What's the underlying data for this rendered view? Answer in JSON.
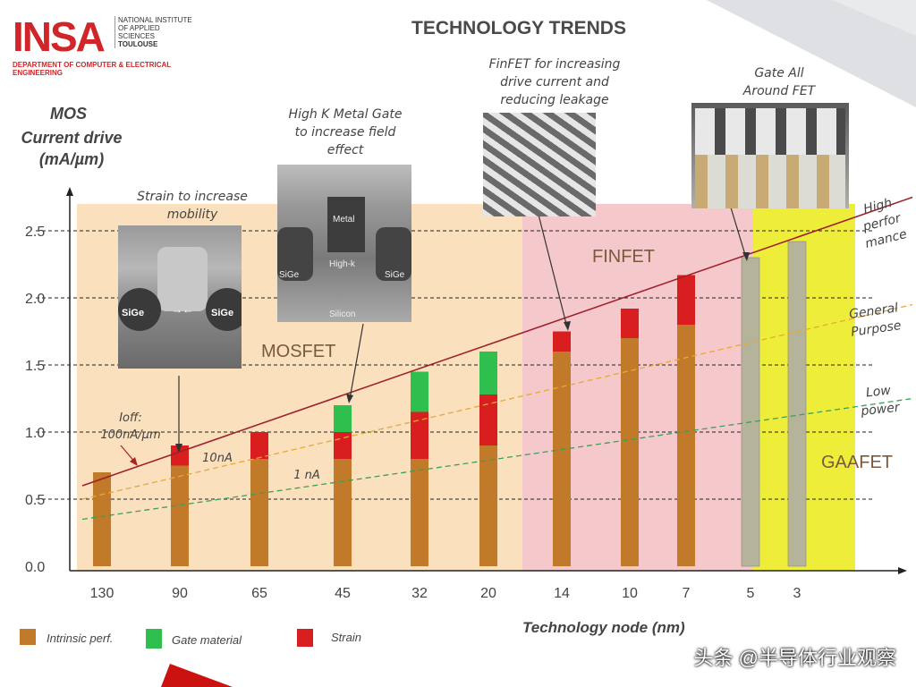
{
  "header": {
    "logo_text": "INSA",
    "institute_lines": [
      "NATIONAL INSTITUTE",
      "OF APPLIED",
      "SCIENCES",
      "TOULOUSE"
    ],
    "department_lines": [
      "DEPARTMENT OF COMPUTER & ELECTRICAL",
      "ENGINEERING"
    ],
    "title": "TECHNOLOGY TRENDS"
  },
  "annotations": {
    "strain": [
      "Strain to increase",
      "mobility"
    ],
    "hkmg": [
      "High K Metal Gate",
      "to increase field",
      "effect"
    ],
    "finfet": [
      "FinFET for increasing",
      "drive current and",
      "reducing leakage"
    ],
    "gaa": [
      "Gate All",
      "Around FET"
    ],
    "ioff": [
      "Ioff:",
      "100nA/µm"
    ],
    "ten_na": "10nA",
    "one_na": "1 nA",
    "high_perf": [
      "High",
      "perfor",
      "mance"
    ],
    "general": [
      "General",
      "Purpose"
    ],
    "low": [
      "Low",
      "power"
    ]
  },
  "regions": {
    "mosfet": "MOSFET",
    "finfet": "FINFET",
    "gaafet": "GAAFET"
  },
  "photo_labels": {
    "strain_sige_left": "SiGe",
    "strain_sige_right": "SiGe",
    "hkmg_metal": "Metal",
    "hkmg_highk": "High-k",
    "hkmg_sige_left": "SiGe",
    "hkmg_sige_right": "SiGe",
    "hkmg_silicon": "Silicon"
  },
  "colors": {
    "intrinsic": "#c07a2a",
    "gate": "#2fbf4f",
    "strain": "#d81e1e",
    "gaa": "#b5b39a",
    "mosfet_bg": "#fae0bd",
    "finfet_bg": "#f5c8cc",
    "gaa_bg": "#eeee3a",
    "high_line": "#a0202a",
    "general_line": "#e8a838",
    "low_line": "#3aa05a"
  },
  "watermark": "头条 @半导体行业观察",
  "chart_data": {
    "type": "bar",
    "title": "TECHNOLOGY TRENDS",
    "ylabel": "MOS Current drive (mA/µm)",
    "ylabel_lines": [
      "MOS",
      "Current drive",
      "(mA/µm)"
    ],
    "xlabel": "Technology node (nm)",
    "ylim": [
      0,
      2.5
    ],
    "yticks": [
      "0.0",
      "0.5",
      "1.0",
      "1.5",
      "2.0",
      "2.5"
    ],
    "ytick_values": [
      0,
      0.5,
      1.0,
      1.5,
      2.0,
      2.5
    ],
    "categories": [
      "130",
      "90",
      "65",
      "45",
      "32",
      "20",
      "14",
      "10",
      "7",
      "5",
      "3"
    ],
    "series": [
      {
        "name": "Intrinsic perf.",
        "values": [
          0.7,
          0.75,
          0.8,
          0.8,
          0.8,
          0.9,
          1.6,
          1.7,
          1.8,
          0,
          0
        ]
      },
      {
        "name": "Strain",
        "values": [
          0,
          0.15,
          0.2,
          0.2,
          0.35,
          0.38,
          0.15,
          0.22,
          0.37,
          0,
          0
        ]
      },
      {
        "name": "Gate material",
        "values": [
          0,
          0,
          0,
          0.2,
          0.3,
          0.32,
          0,
          0,
          0,
          0,
          0
        ]
      },
      {
        "values": [
          0,
          0,
          0,
          0,
          0,
          0,
          0,
          0,
          0,
          2.3,
          2.42
        ]
      }
    ],
    "legend": [
      "Intrinsic perf.",
      "Gate material",
      "Strain"
    ],
    "legend_position": "bottom-left",
    "grid": true,
    "trend_lines": [
      {
        "name": "High performance",
        "x": [
          "130",
          "3"
        ],
        "y": [
          0.6,
          2.75
        ]
      },
      {
        "name": "General Purpose",
        "x": [
          "130",
          "3"
        ],
        "y": [
          0.5,
          1.95
        ]
      },
      {
        "name": "Low power",
        "x": [
          "130",
          "3"
        ],
        "y": [
          0.35,
          1.25
        ]
      }
    ]
  }
}
